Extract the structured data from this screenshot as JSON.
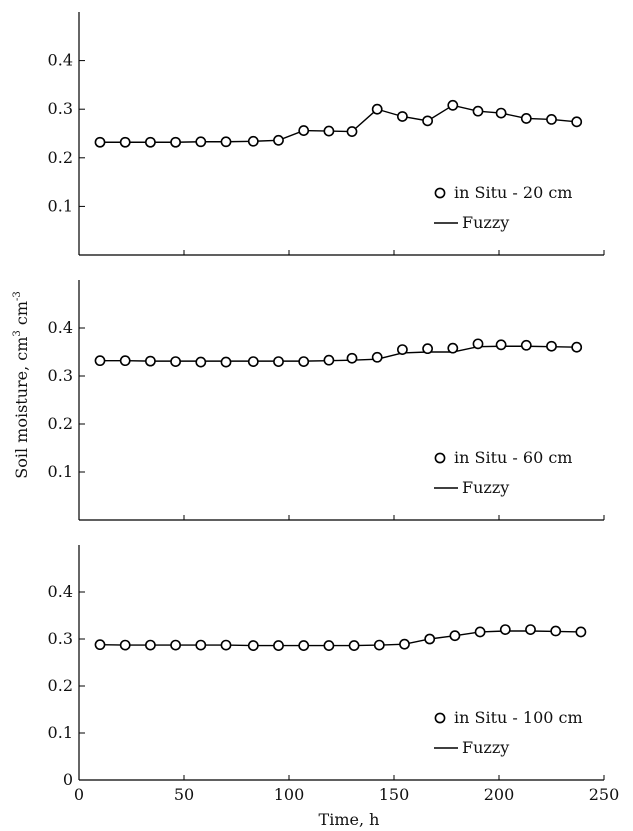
{
  "figure": {
    "ylabel_main": "Soil moisture, cm",
    "ylabel_sup1": "3",
    "ylabel_mid": " cm",
    "ylabel_sup2": "-3",
    "xlabel": "Time, h"
  },
  "colors": {
    "line": "#000000",
    "marker_fill": "#ffffff",
    "axis": "#000000"
  },
  "chart_data": [
    {
      "type": "line",
      "panel": "top",
      "x": [
        10,
        22,
        34,
        46,
        58,
        70,
        83,
        95,
        107,
        119,
        130,
        142,
        154,
        166,
        178,
        190,
        201,
        213,
        225,
        237
      ],
      "series": [
        {
          "name": "in Situ - 20 cm",
          "marker": "circle",
          "values": [
            0.232,
            0.232,
            0.232,
            0.232,
            0.233,
            0.233,
            0.234,
            0.236,
            0.256,
            0.255,
            0.254,
            0.3,
            0.285,
            0.276,
            0.308,
            0.296,
            0.292,
            0.281,
            0.279,
            0.274
          ]
        },
        {
          "name": "Fuzzy",
          "marker": "none",
          "values": [
            0.232,
            0.232,
            0.232,
            0.232,
            0.233,
            0.233,
            0.234,
            0.236,
            0.256,
            0.255,
            0.254,
            0.3,
            0.285,
            0.276,
            0.308,
            0.296,
            0.292,
            0.281,
            0.279,
            0.274
          ]
        }
      ],
      "xlim": [
        0,
        250
      ],
      "ylim": [
        0,
        0.5
      ],
      "yticks": [
        "0.1",
        "0.2",
        "0.3",
        "0.4"
      ],
      "legend": [
        "in Situ - 20 cm",
        "Fuzzy"
      ],
      "legend_position": "bottom-right"
    },
    {
      "type": "line",
      "panel": "middle",
      "x": [
        10,
        22,
        34,
        46,
        58,
        70,
        83,
        95,
        107,
        119,
        130,
        142,
        154,
        166,
        178,
        190,
        201,
        213,
        225,
        237
      ],
      "series": [
        {
          "name": "in Situ - 60 cm",
          "marker": "circle",
          "values": [
            0.332,
            0.332,
            0.331,
            0.33,
            0.329,
            0.329,
            0.33,
            0.33,
            0.33,
            0.333,
            0.337,
            0.339,
            0.355,
            0.357,
            0.358,
            0.367,
            0.365,
            0.364,
            0.362,
            0.36
          ]
        },
        {
          "name": "Fuzzy",
          "marker": "none",
          "values": [
            0.332,
            0.332,
            0.331,
            0.331,
            0.331,
            0.331,
            0.331,
            0.331,
            0.331,
            0.332,
            0.333,
            0.335,
            0.348,
            0.35,
            0.35,
            0.361,
            0.362,
            0.362,
            0.361,
            0.36
          ]
        }
      ],
      "xlim": [
        0,
        250
      ],
      "ylim": [
        0,
        0.5
      ],
      "yticks": [
        "0.1",
        "0.2",
        "0.3",
        "0.4"
      ],
      "legend": [
        "in Situ - 60 cm",
        "Fuzzy"
      ],
      "legend_position": "bottom-right"
    },
    {
      "type": "line",
      "panel": "bottom",
      "x": [
        10,
        22,
        34,
        46,
        58,
        70,
        83,
        95,
        107,
        119,
        131,
        143,
        155,
        167,
        179,
        191,
        203,
        215,
        227,
        239
      ],
      "series": [
        {
          "name": "in Situ - 100 cm",
          "marker": "circle",
          "values": [
            0.288,
            0.287,
            0.287,
            0.287,
            0.287,
            0.287,
            0.286,
            0.286,
            0.286,
            0.286,
            0.286,
            0.287,
            0.289,
            0.3,
            0.307,
            0.315,
            0.32,
            0.32,
            0.317,
            0.315
          ]
        },
        {
          "name": "Fuzzy",
          "marker": "none",
          "values": [
            0.288,
            0.287,
            0.287,
            0.287,
            0.287,
            0.287,
            0.286,
            0.286,
            0.286,
            0.286,
            0.286,
            0.287,
            0.289,
            0.3,
            0.307,
            0.315,
            0.317,
            0.317,
            0.316,
            0.315
          ]
        }
      ],
      "xlim": [
        0,
        250
      ],
      "ylim": [
        0,
        0.5
      ],
      "xticks": [
        "0",
        "50",
        "100",
        "150",
        "200",
        "250"
      ],
      "yticks": [
        "0",
        "0.1",
        "0.2",
        "0.3",
        "0.4"
      ],
      "legend": [
        "in Situ - 100 cm",
        "Fuzzy"
      ],
      "legend_position": "bottom-right"
    }
  ]
}
